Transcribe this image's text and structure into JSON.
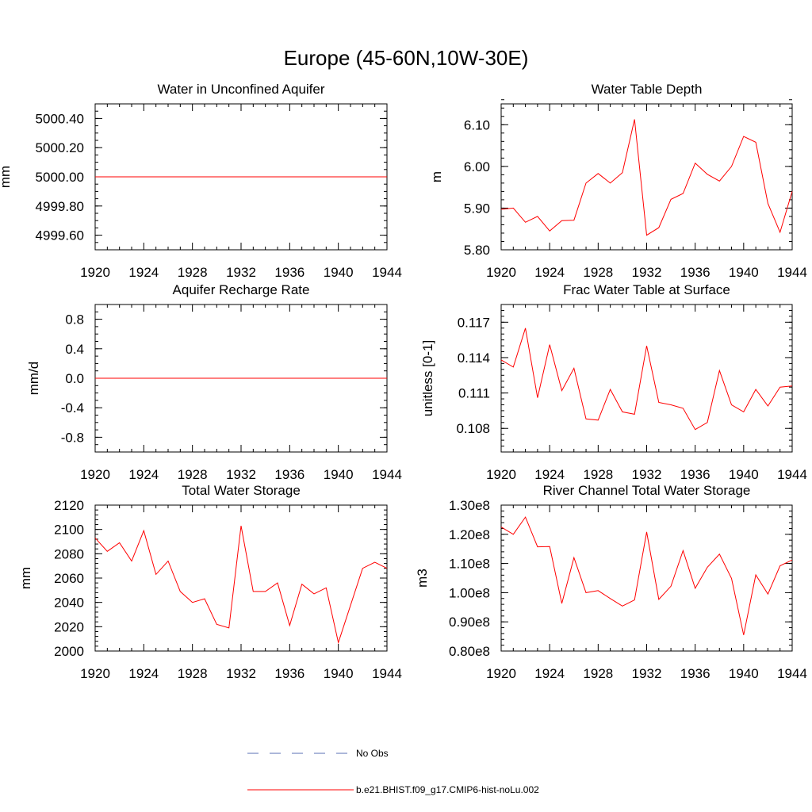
{
  "title": "Europe (45-60N,10W-30E)",
  "legend": [
    {
      "label": "No Obs",
      "color": "#5a6fb4",
      "style": "dashed"
    },
    {
      "label": "b.e21.BHIST.f09_g17.CMIP6-hist-noLu.002",
      "color": "#ff0000",
      "style": "solid"
    }
  ],
  "chart_data": [
    {
      "type": "line",
      "title": "Water in Unconfined Aquifer",
      "ylabel": "mm",
      "xlim": [
        1920,
        1944
      ],
      "ylim": [
        4999.5,
        5000.5
      ],
      "xticks": [
        1920,
        1924,
        1928,
        1932,
        1936,
        1940,
        1944
      ],
      "yticks": [
        4999.6,
        4999.8,
        5000.0,
        5000.2,
        5000.4
      ],
      "ytick_labels": [
        "4999.60",
        "4999.80",
        "5000.00",
        "5000.20",
        "5000.40"
      ],
      "yminor": 0.05,
      "series": [
        {
          "name": "b.e21.BHIST.f09_g17.CMIP6-hist-noLu.002",
          "color": "#ff0000",
          "x": [
            1920,
            1944
          ],
          "y": [
            5000.0,
            5000.0
          ]
        }
      ]
    },
    {
      "type": "line",
      "title": "Water Table Depth",
      "ylabel": "m",
      "xlim": [
        1920,
        1944
      ],
      "ylim": [
        5.8,
        6.15
      ],
      "xticks": [
        1920,
        1924,
        1928,
        1932,
        1936,
        1940,
        1944
      ],
      "yticks": [
        5.8,
        5.9,
        6.0,
        6.1
      ],
      "ytick_labels": [
        "5.80",
        "5.90",
        "6.00",
        "6.10"
      ],
      "yminor": 0.02,
      "series": [
        {
          "name": "b.e21.BHIST.f09_g17.CMIP6-hist-noLu.002",
          "color": "#ff0000",
          "x": [
            1920,
            1921,
            1922,
            1923,
            1924,
            1925,
            1926,
            1927,
            1928,
            1929,
            1930,
            1931,
            1932,
            1933,
            1934,
            1935,
            1936,
            1937,
            1938,
            1939,
            1940,
            1941,
            1942,
            1943,
            1944
          ],
          "y": [
            5.897,
            5.9,
            5.866,
            5.88,
            5.845,
            5.87,
            5.871,
            5.96,
            5.983,
            5.96,
            5.985,
            6.113,
            5.835,
            5.853,
            5.921,
            5.935,
            6.008,
            5.981,
            5.965,
            6.0,
            6.072,
            6.058,
            5.911,
            5.842,
            5.94
          ]
        }
      ]
    },
    {
      "type": "line",
      "title": "Aquifer Recharge Rate",
      "ylabel": "mm/d",
      "xlim": [
        1920,
        1944
      ],
      "ylim": [
        -1.0,
        1.0
      ],
      "xticks": [
        1920,
        1924,
        1928,
        1932,
        1936,
        1940,
        1944
      ],
      "yticks": [
        -0.8,
        -0.4,
        0.0,
        0.4,
        0.8
      ],
      "ytick_labels": [
        "-0.8",
        "-0.4",
        "0.0",
        "0.4",
        "0.8"
      ],
      "yminor": 0.1,
      "series": [
        {
          "name": "b.e21.BHIST.f09_g17.CMIP6-hist-noLu.002",
          "color": "#ff0000",
          "x": [
            1920,
            1944
          ],
          "y": [
            0.0,
            0.0
          ]
        }
      ]
    },
    {
      "type": "line",
      "title": "Frac Water Table at Surface",
      "ylabel": "unitless [0-1]",
      "xlim": [
        1920,
        1944
      ],
      "ylim": [
        0.106,
        0.1185
      ],
      "xticks": [
        1920,
        1924,
        1928,
        1932,
        1936,
        1940,
        1944
      ],
      "yticks": [
        0.108,
        0.111,
        0.114,
        0.117
      ],
      "ytick_labels": [
        "0.108",
        "0.111",
        "0.114",
        "0.117"
      ],
      "yminor": 0.0005,
      "series": [
        {
          "name": "b.e21.BHIST.f09_g17.CMIP6-hist-noLu.002",
          "color": "#ff0000",
          "x": [
            1920,
            1921,
            1922,
            1923,
            1924,
            1925,
            1926,
            1927,
            1928,
            1929,
            1930,
            1931,
            1932,
            1933,
            1934,
            1935,
            1936,
            1937,
            1938,
            1939,
            1940,
            1941,
            1942,
            1943,
            1944
          ],
          "y": [
            0.1138,
            0.1132,
            0.1165,
            0.1106,
            0.1151,
            0.1112,
            0.1131,
            0.1088,
            0.1087,
            0.1113,
            0.1094,
            0.1092,
            0.115,
            0.1102,
            0.11,
            0.1097,
            0.1079,
            0.1085,
            0.1129,
            0.11,
            0.1094,
            0.1113,
            0.1099,
            0.1115,
            0.1116
          ]
        }
      ]
    },
    {
      "type": "line",
      "title": "Total Water Storage",
      "ylabel": "mm",
      "xlim": [
        1920,
        1944
      ],
      "ylim": [
        2000,
        2120
      ],
      "xticks": [
        1920,
        1924,
        1928,
        1932,
        1936,
        1940,
        1944
      ],
      "yticks": [
        2000,
        2020,
        2040,
        2060,
        2080,
        2100,
        2120
      ],
      "ytick_labels": [
        "2000",
        "2020",
        "2040",
        "2060",
        "2080",
        "2100",
        "2120"
      ],
      "yminor": 4,
      "series": [
        {
          "name": "b.e21.BHIST.f09_g17.CMIP6-hist-noLu.002",
          "color": "#ff0000",
          "x": [
            1920,
            1921,
            1922,
            1923,
            1924,
            1925,
            1926,
            1927,
            1928,
            1929,
            1930,
            1931,
            1932,
            1933,
            1934,
            1935,
            1936,
            1937,
            1938,
            1939,
            1940,
            1942,
            1943,
            1944
          ],
          "y": [
            2093,
            2082,
            2089,
            2074,
            2099,
            2063,
            2074,
            2049,
            2040,
            2043,
            2022,
            2019,
            2103,
            2049,
            2049,
            2056,
            2021,
            2055,
            2047,
            2052,
            2007,
            2068,
            2073,
            2068
          ]
        }
      ]
    },
    {
      "type": "line",
      "title": "River Channel Total Water Storage",
      "ylabel": "m3",
      "xlim": [
        1920,
        1944
      ],
      "ylim": [
        80000000,
        130000000
      ],
      "xticks": [
        1920,
        1924,
        1928,
        1932,
        1936,
        1940,
        1944
      ],
      "yticks": [
        80000000,
        90000000,
        100000000,
        110000000,
        120000000,
        130000000
      ],
      "ytick_labels": [
        "0.80e8",
        "0.90e8",
        "1.00e8",
        "1.10e8",
        "1.20e8",
        "1.30e8"
      ],
      "yminor": 2000000,
      "series": [
        {
          "name": "b.e21.BHIST.f09_g17.CMIP6-hist-noLu.002",
          "color": "#ff0000",
          "x": [
            1920,
            1921,
            1922,
            1923,
            1924,
            1925,
            1926,
            1927,
            1928,
            1929,
            1930,
            1931,
            1932,
            1933,
            1934,
            1935,
            1936,
            1937,
            1938,
            1939,
            1940,
            1941,
            1942,
            1943,
            1944
          ],
          "y": [
            122500000,
            120000000,
            125900000,
            115700000,
            115800000,
            96300000,
            112000000,
            100000000,
            100700000,
            98000000,
            95400000,
            97500000,
            120800000,
            97700000,
            102200000,
            114400000,
            101500000,
            108700000,
            113200000,
            104900000,
            85500000,
            106100000,
            99500000,
            109200000,
            111200000
          ]
        }
      ]
    }
  ]
}
